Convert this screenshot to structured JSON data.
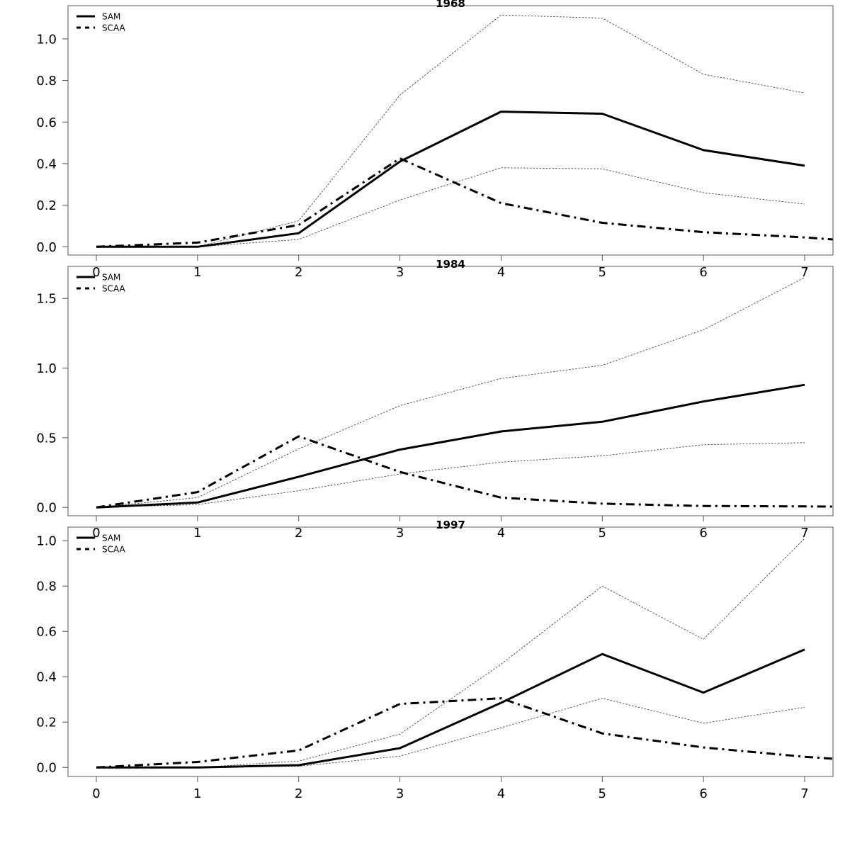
{
  "chart_data": [
    {
      "type": "line",
      "title": "1968",
      "xlabel": "",
      "ylabel": "",
      "x": [
        0,
        1,
        2,
        3,
        4,
        5,
        6,
        7
      ],
      "xlim": [
        -0.28,
        7.28
      ],
      "ylim": [
        -0.04,
        1.16
      ],
      "yticks": [
        0.0,
        0.2,
        0.4,
        0.6,
        0.8,
        1.0
      ],
      "ytick_labels": [
        "0.0",
        "0.2",
        "0.4",
        "0.6",
        "0.8",
        "1.0"
      ],
      "xticks": [
        0,
        1,
        2,
        3,
        4,
        5,
        6,
        7
      ],
      "xtick_labels": [
        "0",
        "1",
        "2",
        "3",
        "4",
        "5",
        "6",
        "7"
      ],
      "legend": {
        "placement": "top-left",
        "entries": [
          "SAM",
          "SCAA"
        ]
      },
      "series": [
        {
          "name": "SAM",
          "style": "solid",
          "values": [
            0.0,
            0.0,
            0.065,
            0.41,
            0.65,
            0.64,
            0.465,
            0.39
          ]
        },
        {
          "name": "SAM upper bound",
          "style": "dotted",
          "values": [
            0.0,
            0.0,
            0.125,
            0.73,
            1.115,
            1.1,
            0.83,
            0.74
          ]
        },
        {
          "name": "SAM lower bound",
          "style": "dotted",
          "values": [
            0.0,
            0.0,
            0.035,
            0.225,
            0.38,
            0.375,
            0.26,
            0.205
          ]
        },
        {
          "name": "SCAA",
          "style": "dashdot",
          "values": [
            0.0,
            0.02,
            0.105,
            0.425,
            0.21,
            0.115,
            0.07,
            0.045
          ],
          "extend_to": {
            "x": 7.28,
            "y": 0.035
          }
        }
      ]
    },
    {
      "type": "line",
      "title": "1984",
      "xlabel": "",
      "ylabel": "",
      "x": [
        0,
        1,
        2,
        3,
        4,
        5,
        6,
        7
      ],
      "xlim": [
        -0.28,
        7.28
      ],
      "ylim": [
        -0.06,
        1.73
      ],
      "yticks": [
        0.0,
        0.5,
        1.0,
        1.5
      ],
      "ytick_labels": [
        "0.0",
        "0.5",
        "1.0",
        "1.5"
      ],
      "xticks": [
        0,
        1,
        2,
        3,
        4,
        5,
        6,
        7
      ],
      "xtick_labels": [
        "0",
        "1",
        "2",
        "3",
        "4",
        "5",
        "6",
        "7"
      ],
      "legend": {
        "placement": "top-left",
        "entries": [
          "SAM",
          "SCAA"
        ]
      },
      "series": [
        {
          "name": "SAM",
          "style": "solid",
          "values": [
            0.0,
            0.035,
            0.22,
            0.415,
            0.545,
            0.615,
            0.76,
            0.88
          ]
        },
        {
          "name": "SAM upper bound",
          "style": "dotted",
          "values": [
            0.0,
            0.07,
            0.42,
            0.73,
            0.925,
            1.02,
            1.275,
            1.65
          ]
        },
        {
          "name": "SAM lower bound",
          "style": "dotted",
          "values": [
            0.0,
            0.02,
            0.12,
            0.24,
            0.325,
            0.37,
            0.45,
            0.465
          ]
        },
        {
          "name": "SCAA",
          "style": "dashdot",
          "values": [
            0.0,
            0.11,
            0.51,
            0.255,
            0.07,
            0.027,
            0.01,
            0.007
          ],
          "extend_to": {
            "x": 7.28,
            "y": 0.006
          }
        }
      ]
    },
    {
      "type": "line",
      "title": "1997",
      "xlabel": "",
      "ylabel": "",
      "x": [
        0,
        1,
        2,
        3,
        4,
        5,
        6,
        7
      ],
      "xlim": [
        -0.28,
        7.28
      ],
      "ylim": [
        -0.04,
        1.06
      ],
      "yticks": [
        0.0,
        0.2,
        0.4,
        0.6,
        0.8,
        1.0
      ],
      "ytick_labels": [
        "0.0",
        "0.2",
        "0.4",
        "0.6",
        "0.8",
        "1.0"
      ],
      "xticks": [
        0,
        1,
        2,
        3,
        4,
        5,
        6,
        7
      ],
      "xtick_labels": [
        "0",
        "1",
        "2",
        "3",
        "4",
        "5",
        "6",
        "7"
      ],
      "legend": {
        "placement": "top-left",
        "entries": [
          "SAM",
          "SCAA"
        ]
      },
      "series": [
        {
          "name": "SAM",
          "style": "solid",
          "values": [
            0.0,
            0.0,
            0.01,
            0.085,
            0.285,
            0.5,
            0.33,
            0.52
          ]
        },
        {
          "name": "SAM upper bound",
          "style": "dotted",
          "values": [
            0.0,
            0.0,
            0.028,
            0.147,
            0.455,
            0.8,
            0.565,
            1.01
          ]
        },
        {
          "name": "SAM lower bound",
          "style": "dotted",
          "values": [
            0.0,
            0.0,
            0.005,
            0.05,
            0.175,
            0.305,
            0.195,
            0.265
          ]
        },
        {
          "name": "SCAA",
          "style": "dashdot",
          "values": [
            0.0,
            0.024,
            0.075,
            0.28,
            0.305,
            0.15,
            0.088,
            0.047
          ],
          "extend_to": {
            "x": 7.28,
            "y": 0.038
          }
        }
      ]
    }
  ]
}
